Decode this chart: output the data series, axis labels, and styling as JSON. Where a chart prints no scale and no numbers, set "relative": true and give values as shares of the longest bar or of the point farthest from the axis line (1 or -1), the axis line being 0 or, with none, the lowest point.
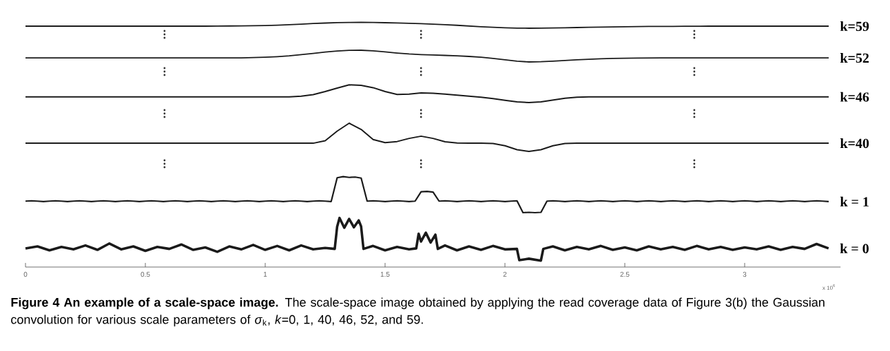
{
  "chart_data": [
    {
      "type": "line",
      "relative": true,
      "tick_labels": false,
      "categories": [
        null,
        null,
        null,
        null,
        null,
        null,
        null,
        null,
        null,
        null,
        null,
        null,
        null,
        null,
        null,
        null,
        null,
        null,
        null,
        null,
        null,
        null,
        null,
        null,
        null,
        null,
        null,
        null,
        null,
        null,
        null,
        null,
        null,
        null,
        null,
        null,
        null,
        null,
        null,
        null,
        null,
        null,
        null,
        null,
        null,
        null,
        null,
        null,
        null,
        null,
        null,
        null,
        null,
        null,
        null,
        null,
        null,
        null,
        null,
        null,
        null,
        null,
        null,
        null,
        null,
        null,
        null,
        null
      ],
      "series": [
        {
          "name": "k=59",
          "color": "#1a1a1a",
          "values": [
            0.35,
            0.35,
            0.35,
            0.35,
            0.35,
            0.35,
            0.35,
            0.35,
            0.35,
            0.35,
            0.35,
            0.35,
            0.35,
            0.35,
            0.35,
            0.35,
            0.37,
            0.38,
            0.4,
            0.42,
            0.46,
            0.52,
            0.6,
            0.7,
            0.8,
            0.88,
            0.95,
            0.99,
            1.0,
            0.98,
            0.94,
            0.89,
            0.84,
            0.78,
            0.7,
            0.6,
            0.5,
            0.38,
            0.26,
            0.15,
            0.07,
            0.02,
            0.0,
            0.01,
            0.04,
            0.08,
            0.12,
            0.16,
            0.2,
            0.23,
            0.26,
            0.28,
            0.3,
            0.31,
            0.32,
            0.33,
            0.34,
            0.35,
            0.35,
            0.35,
            0.35,
            0.35,
            0.35,
            0.35,
            0.35,
            0.35,
            0.35,
            0.35
          ]
        }
      ]
    },
    {
      "type": "line",
      "relative": true,
      "tick_labels": false,
      "categories": [
        null,
        null,
        null,
        null,
        null,
        null,
        null,
        null,
        null,
        null,
        null,
        null,
        null,
        null,
        null,
        null,
        null,
        null,
        null,
        null,
        null,
        null,
        null,
        null,
        null,
        null,
        null,
        null,
        null,
        null,
        null,
        null,
        null,
        null,
        null,
        null,
        null,
        null,
        null,
        null,
        null,
        null,
        null,
        null,
        null,
        null,
        null,
        null,
        null,
        null,
        null,
        null,
        null,
        null,
        null,
        null,
        null,
        null,
        null,
        null,
        null,
        null,
        null,
        null,
        null,
        null,
        null,
        null
      ],
      "series": [
        {
          "name": "k=52",
          "color": "#1a1a1a",
          "values": [
            0.35,
            0.35,
            0.35,
            0.35,
            0.35,
            0.35,
            0.35,
            0.35,
            0.35,
            0.35,
            0.35,
            0.35,
            0.35,
            0.35,
            0.35,
            0.35,
            0.35,
            0.35,
            0.35,
            0.37,
            0.4,
            0.45,
            0.52,
            0.62,
            0.73,
            0.84,
            0.93,
            0.99,
            1.0,
            0.95,
            0.86,
            0.76,
            0.68,
            0.63,
            0.6,
            0.56,
            0.52,
            0.47,
            0.4,
            0.3,
            0.18,
            0.07,
            0.0,
            0.02,
            0.07,
            0.13,
            0.18,
            0.23,
            0.27,
            0.3,
            0.32,
            0.33,
            0.34,
            0.35,
            0.35,
            0.35,
            0.35,
            0.35,
            0.35,
            0.35,
            0.35,
            0.35,
            0.35,
            0.35,
            0.35,
            0.35,
            0.35,
            0.35
          ]
        }
      ]
    },
    {
      "type": "line",
      "relative": true,
      "tick_labels": false,
      "categories": [
        null,
        null,
        null,
        null,
        null,
        null,
        null,
        null,
        null,
        null,
        null,
        null,
        null,
        null,
        null,
        null,
        null,
        null,
        null,
        null,
        null,
        null,
        null,
        null,
        null,
        null,
        null,
        null,
        null,
        null,
        null,
        null,
        null,
        null,
        null,
        null,
        null,
        null,
        null,
        null,
        null,
        null,
        null,
        null,
        null,
        null,
        null,
        null,
        null,
        null,
        null,
        null,
        null,
        null,
        null,
        null,
        null,
        null,
        null,
        null,
        null,
        null,
        null,
        null,
        null,
        null,
        null,
        null
      ],
      "series": [
        {
          "name": "k=46",
          "color": "#1a1a1a",
          "values": [
            0.32,
            0.32,
            0.32,
            0.32,
            0.32,
            0.32,
            0.32,
            0.32,
            0.32,
            0.32,
            0.32,
            0.32,
            0.32,
            0.32,
            0.32,
            0.32,
            0.32,
            0.32,
            0.32,
            0.32,
            0.32,
            0.32,
            0.32,
            0.36,
            0.45,
            0.62,
            0.82,
            1.0,
            0.97,
            0.84,
            0.62,
            0.46,
            0.48,
            0.54,
            0.53,
            0.48,
            0.42,
            0.36,
            0.3,
            0.22,
            0.13,
            0.04,
            0.0,
            0.04,
            0.14,
            0.24,
            0.3,
            0.32,
            0.32,
            0.32,
            0.32,
            0.32,
            0.32,
            0.32,
            0.32,
            0.32,
            0.32,
            0.32,
            0.32,
            0.32,
            0.32,
            0.32,
            0.32,
            0.32,
            0.32,
            0.32,
            0.32,
            0.32
          ]
        }
      ]
    },
    {
      "type": "line",
      "relative": true,
      "tick_labels": false,
      "categories": [
        null,
        null,
        null,
        null,
        null,
        null,
        null,
        null,
        null,
        null,
        null,
        null,
        null,
        null,
        null,
        null,
        null,
        null,
        null,
        null,
        null,
        null,
        null,
        null,
        null,
        null,
        null,
        null,
        null,
        null,
        null,
        null,
        null,
        null,
        null,
        null,
        null,
        null,
        null,
        null,
        null,
        null,
        null,
        null,
        null,
        null,
        null,
        null,
        null,
        null,
        null,
        null,
        null,
        null,
        null,
        null,
        null,
        null,
        null,
        null,
        null,
        null,
        null,
        null,
        null,
        null,
        null,
        null
      ],
      "series": [
        {
          "name": "k=40",
          "color": "#1a1a1a",
          "values": [
            0.29,
            0.29,
            0.29,
            0.29,
            0.29,
            0.29,
            0.29,
            0.29,
            0.29,
            0.29,
            0.29,
            0.29,
            0.29,
            0.29,
            0.29,
            0.29,
            0.29,
            0.29,
            0.29,
            0.29,
            0.29,
            0.29,
            0.29,
            0.29,
            0.29,
            0.38,
            0.72,
            1.0,
            0.78,
            0.42,
            0.31,
            0.35,
            0.46,
            0.54,
            0.46,
            0.34,
            0.3,
            0.29,
            0.29,
            0.28,
            0.2,
            0.06,
            0.0,
            0.06,
            0.2,
            0.28,
            0.29,
            0.29,
            0.29,
            0.29,
            0.29,
            0.29,
            0.29,
            0.29,
            0.29,
            0.29,
            0.29,
            0.29,
            0.29,
            0.29,
            0.29,
            0.29,
            0.29,
            0.29,
            0.29,
            0.29,
            0.29,
            0.29
          ]
        }
      ]
    },
    {
      "type": "line",
      "relative": true,
      "tick_labels": false,
      "categories": [
        null,
        null,
        null,
        null,
        null,
        null,
        null,
        null,
        null,
        null,
        null,
        null,
        null,
        null,
        null,
        null,
        null,
        null,
        null,
        null,
        null,
        null,
        null,
        null,
        null,
        null,
        null,
        null,
        null,
        null,
        null,
        null,
        null,
        null,
        null,
        null,
        null,
        null,
        null,
        null,
        null,
        null,
        null,
        null,
        null,
        null,
        null,
        null,
        null,
        null,
        null,
        null,
        null,
        null,
        null,
        null,
        null,
        null,
        null,
        null,
        null,
        null,
        null,
        null,
        null,
        null,
        null,
        null,
        null,
        null,
        null,
        null,
        null,
        null,
        null,
        null,
        null,
        null,
        null,
        null,
        null,
        null,
        null,
        null,
        null,
        null,
        null,
        null,
        null,
        null,
        null,
        null,
        null,
        null,
        null,
        null,
        null,
        null,
        null,
        null,
        null,
        null,
        null,
        null,
        null,
        null,
        null,
        null,
        null,
        null,
        null,
        null,
        null,
        null,
        null,
        null,
        null,
        null,
        null,
        null,
        null,
        null,
        null,
        null,
        null,
        null,
        null,
        null,
        null,
        null,
        null,
        null,
        null,
        null,
        null
      ],
      "series": [
        {
          "name": "k = 1",
          "color": "#1a1a1a",
          "values": [
            0.32,
            0.33,
            0.32,
            0.31,
            0.32,
            0.33,
            0.32,
            0.31,
            0.32,
            0.33,
            0.32,
            0.31,
            0.32,
            0.33,
            0.32,
            0.31,
            0.32,
            0.33,
            0.32,
            0.31,
            0.32,
            0.33,
            0.32,
            0.31,
            0.32,
            0.33,
            0.32,
            0.31,
            0.32,
            0.33,
            0.32,
            0.31,
            0.32,
            0.33,
            0.32,
            0.31,
            0.32,
            0.33,
            0.32,
            0.31,
            0.32,
            0.33,
            0.32,
            0.31,
            0.32,
            0.33,
            0.32,
            0.31,
            0.32,
            0.33,
            0.32,
            0.31,
            0.97,
            1.0,
            0.98,
            0.99,
            0.96,
            0.32,
            0.33,
            0.32,
            0.31,
            0.32,
            0.33,
            0.32,
            0.31,
            0.32,
            0.58,
            0.59,
            0.57,
            0.32,
            0.33,
            0.32,
            0.31,
            0.32,
            0.33,
            0.32,
            0.31,
            0.32,
            0.33,
            0.32,
            0.31,
            0.32,
            0.33,
            0.0,
            0.01,
            0.0,
            0.01,
            0.32,
            0.33,
            0.32,
            0.31,
            0.32,
            0.33,
            0.32,
            0.31,
            0.32,
            0.33,
            0.32,
            0.31,
            0.32,
            0.33,
            0.32,
            0.31,
            0.32,
            0.33,
            0.32,
            0.31,
            0.32,
            0.33,
            0.32,
            0.31,
            0.32,
            0.33,
            0.32,
            0.31,
            0.32,
            0.33,
            0.32,
            0.31,
            0.32,
            0.33,
            0.32,
            0.31,
            0.32,
            0.33,
            0.32,
            0.31,
            0.32,
            0.33,
            0.32,
            0.31,
            0.32,
            0.33,
            0.32,
            0.31
          ]
        }
      ]
    },
    {
      "type": "line",
      "relative": true,
      "xlim": [
        0,
        3.4
      ],
      "xticks": [
        0,
        0.5,
        1,
        1.5,
        2,
        2.5,
        3
      ],
      "tick_labels": "x",
      "xlabel": "x 10$^{6}$",
      "x": [
        0,
        0.05,
        0.1,
        0.15,
        0.2,
        0.25,
        0.3,
        0.35,
        0.4,
        0.45,
        0.5,
        0.55,
        0.6,
        0.65,
        0.7,
        0.75,
        0.8,
        0.85,
        0.9,
        0.95,
        1.0,
        1.05,
        1.1,
        1.15,
        1.2,
        1.25,
        1.29,
        1.3,
        1.31,
        1.33,
        1.35,
        1.37,
        1.39,
        1.4,
        1.41,
        1.45,
        1.5,
        1.55,
        1.6,
        1.63,
        1.64,
        1.65,
        1.67,
        1.69,
        1.71,
        1.72,
        1.75,
        1.8,
        1.85,
        1.9,
        1.95,
        2.0,
        2.05,
        2.06,
        2.1,
        2.15,
        2.16,
        2.2,
        2.25,
        2.3,
        2.35,
        2.4,
        2.45,
        2.5,
        2.55,
        2.6,
        2.65,
        2.7,
        2.75,
        2.8,
        2.85,
        2.9,
        2.95,
        3.0,
        3.05,
        3.1,
        3.15,
        3.2,
        3.25,
        3.3,
        3.35
      ],
      "series": [
        {
          "name": "k = 0",
          "color": "#1a1a1a",
          "values": [
            0.38,
            0.42,
            0.34,
            0.41,
            0.36,
            0.44,
            0.35,
            0.48,
            0.36,
            0.42,
            0.33,
            0.41,
            0.37,
            0.46,
            0.35,
            0.4,
            0.31,
            0.42,
            0.36,
            0.45,
            0.35,
            0.43,
            0.34,
            0.44,
            0.36,
            0.39,
            0.37,
            0.82,
            1.0,
            0.8,
            0.98,
            0.81,
            0.95,
            0.83,
            0.37,
            0.43,
            0.34,
            0.41,
            0.36,
            0.38,
            0.68,
            0.52,
            0.7,
            0.5,
            0.66,
            0.37,
            0.44,
            0.34,
            0.42,
            0.35,
            0.43,
            0.36,
            0.37,
            0.14,
            0.17,
            0.13,
            0.37,
            0.42,
            0.34,
            0.41,
            0.36,
            0.43,
            0.35,
            0.4,
            0.34,
            0.42,
            0.36,
            0.41,
            0.35,
            0.43,
            0.36,
            0.41,
            0.35,
            0.4,
            0.36,
            0.42,
            0.35,
            0.41,
            0.37,
            0.47,
            0.38
          ]
        }
      ],
      "annotations": [
        "**Figure 4 An example of a scale-space image.** The scale-space image obtained by applying the read coverage data of Figure 3(b) the Gaussian convolution for various scale parameters of *σ*$_{k}$, *k*=0, 1, 40, 46, 52, and 59."
      ]
    }
  ]
}
